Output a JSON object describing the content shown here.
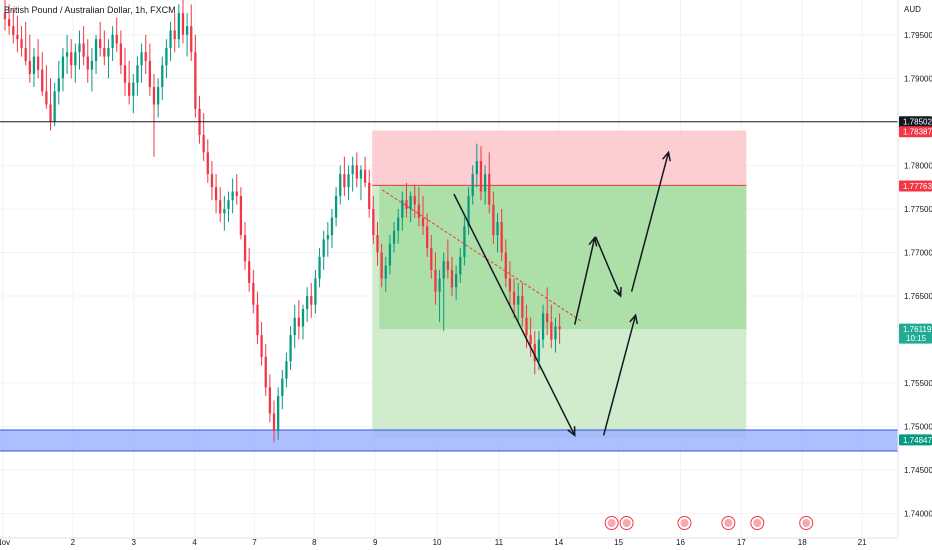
{
  "header": {
    "title": "British Pound / Australian Dollar, 1h, FXCM",
    "currency": "AUD"
  },
  "chart_data": {
    "type": "candlestick",
    "title": "British Pound / Australian Dollar, 1h, FXCM",
    "ylabel": "AUD",
    "ylim": [
      1.7372,
      1.799
    ],
    "y_ticks": [
      "1.79500",
      "1.79000",
      "1.78000",
      "1.77500",
      "1.77000",
      "1.76500",
      "1.75500",
      "1.75000",
      "1.74500",
      "1.74000"
    ],
    "y_tick_values": [
      1.795,
      1.79,
      1.78,
      1.775,
      1.77,
      1.765,
      1.755,
      1.75,
      1.745,
      1.74
    ],
    "x_ticks": [
      "Nov",
      "2",
      "3",
      "4",
      "7",
      "8",
      "9",
      "10",
      "11",
      "14",
      "15",
      "16",
      "17",
      "18",
      "21"
    ],
    "x_tick_index": [
      3,
      73,
      134,
      195,
      255,
      315,
      376,
      438,
      500,
      560,
      620,
      682,
      743,
      804,
      864
    ],
    "resistance_line": {
      "price": 1.78502,
      "label": "1.78502",
      "color": "#131722"
    },
    "stop_level": {
      "price": 1.78387,
      "label": "1.78387",
      "color": "#f23645"
    },
    "entry_level": {
      "price": 1.77763,
      "label": "1.77763",
      "color": "#f23645"
    },
    "current_price": {
      "price": 1.76119,
      "label": "1.76119",
      "countdown": "10:15",
      "color": "#22ab94"
    },
    "target_level": {
      "price": 1.74847,
      "label": "1.74847",
      "color": "#089981"
    },
    "support_zone": {
      "high": 1.7496,
      "low": 1.7472,
      "color": "#5b7cf5"
    },
    "short_position": {
      "start_index": 373,
      "end_index": 748,
      "stop": 1.784,
      "entry": 1.7777,
      "target": 1.7487,
      "pnl_fill_until_index": 588,
      "pnl_low": 1.7612
    },
    "projection_arrows": [
      {
        "from": [
          455,
          1.7767
        ],
        "to": [
          576,
          1.749
        ]
      },
      {
        "from": [
          576,
          1.7617
        ],
        "to": [
          596,
          1.7717
        ]
      },
      {
        "from": [
          597,
          1.7718
        ],
        "to": [
          622,
          1.765
        ]
      },
      {
        "from": [
          633,
          1.7655
        ],
        "to": [
          670,
          1.7815
        ]
      },
      {
        "from": [
          605,
          1.749
        ],
        "to": [
          637,
          1.7628
        ]
      }
    ],
    "candles": [
      [
        1.7975,
        1.799,
        1.7955,
        1.7968
      ],
      [
        1.7968,
        1.7985,
        1.795,
        1.796
      ],
      [
        1.796,
        1.798,
        1.794,
        1.795
      ],
      [
        1.795,
        1.7972,
        1.793,
        1.7945
      ],
      [
        1.7945,
        1.796,
        1.7925,
        1.7935
      ],
      [
        1.7935,
        1.7965,
        1.7915,
        1.792
      ],
      [
        1.792,
        1.795,
        1.7895,
        1.7905
      ],
      [
        1.7905,
        1.7935,
        1.789,
        1.7925
      ],
      [
        1.7925,
        1.7945,
        1.79,
        1.791
      ],
      [
        1.791,
        1.793,
        1.788,
        1.7885
      ],
      [
        1.7885,
        1.7915,
        1.7865,
        1.787
      ],
      [
        1.787,
        1.79,
        1.784,
        1.785
      ],
      [
        1.785,
        1.7895,
        1.7845,
        1.7885
      ],
      [
        1.7885,
        1.792,
        1.787,
        1.79
      ],
      [
        1.79,
        1.7935,
        1.7885,
        1.7925
      ],
      [
        1.7925,
        1.795,
        1.7905,
        1.793
      ],
      [
        1.793,
        1.7945,
        1.79,
        1.7915
      ],
      [
        1.7915,
        1.794,
        1.7895,
        1.793
      ],
      [
        1.793,
        1.7955,
        1.791,
        1.794
      ],
      [
        1.794,
        1.796,
        1.7915,
        1.7925
      ],
      [
        1.7925,
        1.7945,
        1.7895,
        1.791
      ],
      [
        1.791,
        1.7935,
        1.7885,
        1.792
      ],
      [
        1.792,
        1.795,
        1.7905,
        1.7945
      ],
      [
        1.7945,
        1.7965,
        1.7925,
        1.7935
      ],
      [
        1.7935,
        1.7955,
        1.7915,
        1.7925
      ],
      [
        1.7925,
        1.7945,
        1.79,
        1.7935
      ],
      [
        1.7935,
        1.796,
        1.792,
        1.795
      ],
      [
        1.795,
        1.797,
        1.793,
        1.794
      ],
      [
        1.794,
        1.7955,
        1.7905,
        1.7915
      ],
      [
        1.7915,
        1.7935,
        1.788,
        1.7895
      ],
      [
        1.7895,
        1.792,
        1.787,
        1.788
      ],
      [
        1.788,
        1.7905,
        1.786,
        1.7895
      ],
      [
        1.7895,
        1.7925,
        1.788,
        1.7915
      ],
      [
        1.7915,
        1.794,
        1.7895,
        1.793
      ],
      [
        1.793,
        1.795,
        1.7905,
        1.792
      ],
      [
        1.792,
        1.794,
        1.788,
        1.789
      ],
      [
        1.789,
        1.7905,
        1.781,
        1.787
      ],
      [
        1.787,
        1.79,
        1.7855,
        1.789
      ],
      [
        1.789,
        1.7925,
        1.7875,
        1.7915
      ],
      [
        1.7915,
        1.7945,
        1.79,
        1.7935
      ],
      [
        1.7935,
        1.7965,
        1.792,
        1.7955
      ],
      [
        1.7955,
        1.7975,
        1.793,
        1.7945
      ],
      [
        1.7945,
        1.7985,
        1.7935,
        1.7975
      ],
      [
        1.7975,
        1.799,
        1.794,
        1.795
      ],
      [
        1.795,
        1.7975,
        1.7925,
        1.796
      ],
      [
        1.796,
        1.7985,
        1.792,
        1.793
      ],
      [
        1.793,
        1.795,
        1.7855,
        1.7865
      ],
      [
        1.7865,
        1.788,
        1.7825,
        1.7835
      ],
      [
        1.7835,
        1.786,
        1.7805,
        1.7815
      ],
      [
        1.7815,
        1.783,
        1.778,
        1.779
      ],
      [
        1.779,
        1.7805,
        1.776,
        1.7775
      ],
      [
        1.7775,
        1.779,
        1.7745,
        1.776
      ],
      [
        1.776,
        1.7775,
        1.7735,
        1.7745
      ],
      [
        1.7745,
        1.7765,
        1.7725,
        1.775
      ],
      [
        1.775,
        1.777,
        1.7735,
        1.776
      ],
      [
        1.776,
        1.7785,
        1.7745,
        1.777
      ],
      [
        1.777,
        1.779,
        1.7755,
        1.7765
      ],
      [
        1.7765,
        1.7775,
        1.7715,
        1.772
      ],
      [
        1.772,
        1.7735,
        1.768,
        1.769
      ],
      [
        1.769,
        1.7705,
        1.7655,
        1.7665
      ],
      [
        1.7665,
        1.768,
        1.763,
        1.764
      ],
      [
        1.764,
        1.7655,
        1.7595,
        1.7605
      ],
      [
        1.7605,
        1.762,
        1.757,
        1.758
      ],
      [
        1.758,
        1.7595,
        1.7535,
        1.7545
      ],
      [
        1.7545,
        1.756,
        1.7505,
        1.7515
      ],
      [
        1.7515,
        1.753,
        1.7482,
        1.7495
      ],
      [
        1.7495,
        1.7545,
        1.7485,
        1.7535
      ],
      [
        1.7535,
        1.7565,
        1.752,
        1.7555
      ],
      [
        1.7555,
        1.7585,
        1.7545,
        1.7575
      ],
      [
        1.7575,
        1.7615,
        1.7565,
        1.7605
      ],
      [
        1.7605,
        1.764,
        1.759,
        1.7625
      ],
      [
        1.7625,
        1.7645,
        1.76,
        1.7615
      ],
      [
        1.7615,
        1.764,
        1.76,
        1.7635
      ],
      [
        1.7635,
        1.766,
        1.762,
        1.765
      ],
      [
        1.765,
        1.7665,
        1.7625,
        1.764
      ],
      [
        1.764,
        1.768,
        1.763,
        1.767
      ],
      [
        1.767,
        1.7705,
        1.766,
        1.7695
      ],
      [
        1.7695,
        1.7725,
        1.768,
        1.7715
      ],
      [
        1.7715,
        1.7735,
        1.7695,
        1.772
      ],
      [
        1.772,
        1.775,
        1.7705,
        1.774
      ],
      [
        1.774,
        1.7775,
        1.773,
        1.7765
      ],
      [
        1.7765,
        1.78,
        1.7755,
        1.779
      ],
      [
        1.779,
        1.781,
        1.7765,
        1.7775
      ],
      [
        1.7775,
        1.78,
        1.776,
        1.779
      ],
      [
        1.779,
        1.781,
        1.777,
        1.78
      ],
      [
        1.78,
        1.7815,
        1.7775,
        1.7785
      ],
      [
        1.7785,
        1.78,
        1.776,
        1.7795
      ],
      [
        1.7795,
        1.781,
        1.7775,
        1.778
      ],
      [
        1.778,
        1.7795,
        1.774,
        1.775
      ],
      [
        1.775,
        1.7765,
        1.771,
        1.772
      ],
      [
        1.772,
        1.7735,
        1.7685,
        1.77
      ],
      [
        1.77,
        1.771,
        1.766,
        1.767
      ],
      [
        1.767,
        1.7695,
        1.7655,
        1.7685
      ],
      [
        1.7685,
        1.772,
        1.7675,
        1.771
      ],
      [
        1.771,
        1.7735,
        1.77,
        1.7725
      ],
      [
        1.7725,
        1.775,
        1.771,
        1.774
      ],
      [
        1.774,
        1.777,
        1.7725,
        1.776
      ],
      [
        1.776,
        1.778,
        1.774,
        1.775
      ],
      [
        1.775,
        1.777,
        1.7735,
        1.7765
      ],
      [
        1.7765,
        1.7778,
        1.774,
        1.7755
      ],
      [
        1.7755,
        1.7775,
        1.773,
        1.774
      ],
      [
        1.774,
        1.7765,
        1.772,
        1.773
      ],
      [
        1.773,
        1.7745,
        1.7695,
        1.7705
      ],
      [
        1.7705,
        1.772,
        1.767,
        1.768
      ],
      [
        1.768,
        1.77,
        1.764,
        1.7655
      ],
      [
        1.7655,
        1.768,
        1.762,
        1.767
      ],
      [
        1.767,
        1.77,
        1.761,
        1.769
      ],
      [
        1.769,
        1.7715,
        1.767,
        1.768
      ],
      [
        1.768,
        1.7695,
        1.765,
        1.766
      ],
      [
        1.766,
        1.7685,
        1.7645,
        1.7675
      ],
      [
        1.7675,
        1.7705,
        1.7665,
        1.7695
      ],
      [
        1.7695,
        1.774,
        1.7685,
        1.773
      ],
      [
        1.773,
        1.7775,
        1.772,
        1.7765
      ],
      [
        1.7765,
        1.78,
        1.7755,
        1.779
      ],
      [
        1.779,
        1.7825,
        1.7775,
        1.7805
      ],
      [
        1.7805,
        1.7822,
        1.776,
        1.777
      ],
      [
        1.777,
        1.78,
        1.7755,
        1.779
      ],
      [
        1.779,
        1.7815,
        1.7745,
        1.7755
      ],
      [
        1.7755,
        1.777,
        1.771,
        1.772
      ],
      [
        1.772,
        1.7745,
        1.77,
        1.7735
      ],
      [
        1.7735,
        1.775,
        1.769,
        1.77
      ],
      [
        1.77,
        1.7715,
        1.766,
        1.767
      ],
      [
        1.767,
        1.769,
        1.764,
        1.7655
      ],
      [
        1.7655,
        1.767,
        1.7625,
        1.764
      ],
      [
        1.764,
        1.7665,
        1.762,
        1.765
      ],
      [
        1.765,
        1.7665,
        1.7615,
        1.7625
      ],
      [
        1.7625,
        1.764,
        1.759,
        1.7605
      ],
      [
        1.7605,
        1.7625,
        1.758,
        1.7595
      ],
      [
        1.7595,
        1.761,
        1.756,
        1.7575
      ],
      [
        1.7575,
        1.761,
        1.7565,
        1.76
      ],
      [
        1.76,
        1.764,
        1.759,
        1.763
      ],
      [
        1.763,
        1.766,
        1.7605,
        1.762
      ],
      [
        1.762,
        1.764,
        1.759,
        1.76
      ],
      [
        1.76,
        1.7625,
        1.7585,
        1.7615
      ],
      [
        1.7615,
        1.763,
        1.7595,
        1.7612
      ]
    ],
    "event_markers": [
      {
        "index": 613,
        "label": "ECB"
      },
      {
        "index": 628,
        "label": "GB"
      },
      {
        "index": 686,
        "label": "US"
      },
      {
        "index": 730,
        "label": "ECB"
      },
      {
        "index": 759,
        "label": "GB"
      },
      {
        "index": 808,
        "label": "US"
      }
    ]
  },
  "colors": {
    "up": "#089981",
    "down": "#f23645",
    "grid": "#f0f3fa",
    "axis_text": "#131722",
    "risk_fill": "#fbc6c9",
    "reward_fill": "#a8dfa4",
    "reward_light": "#cdebc9",
    "support_fill": "#9fb4ff"
  }
}
